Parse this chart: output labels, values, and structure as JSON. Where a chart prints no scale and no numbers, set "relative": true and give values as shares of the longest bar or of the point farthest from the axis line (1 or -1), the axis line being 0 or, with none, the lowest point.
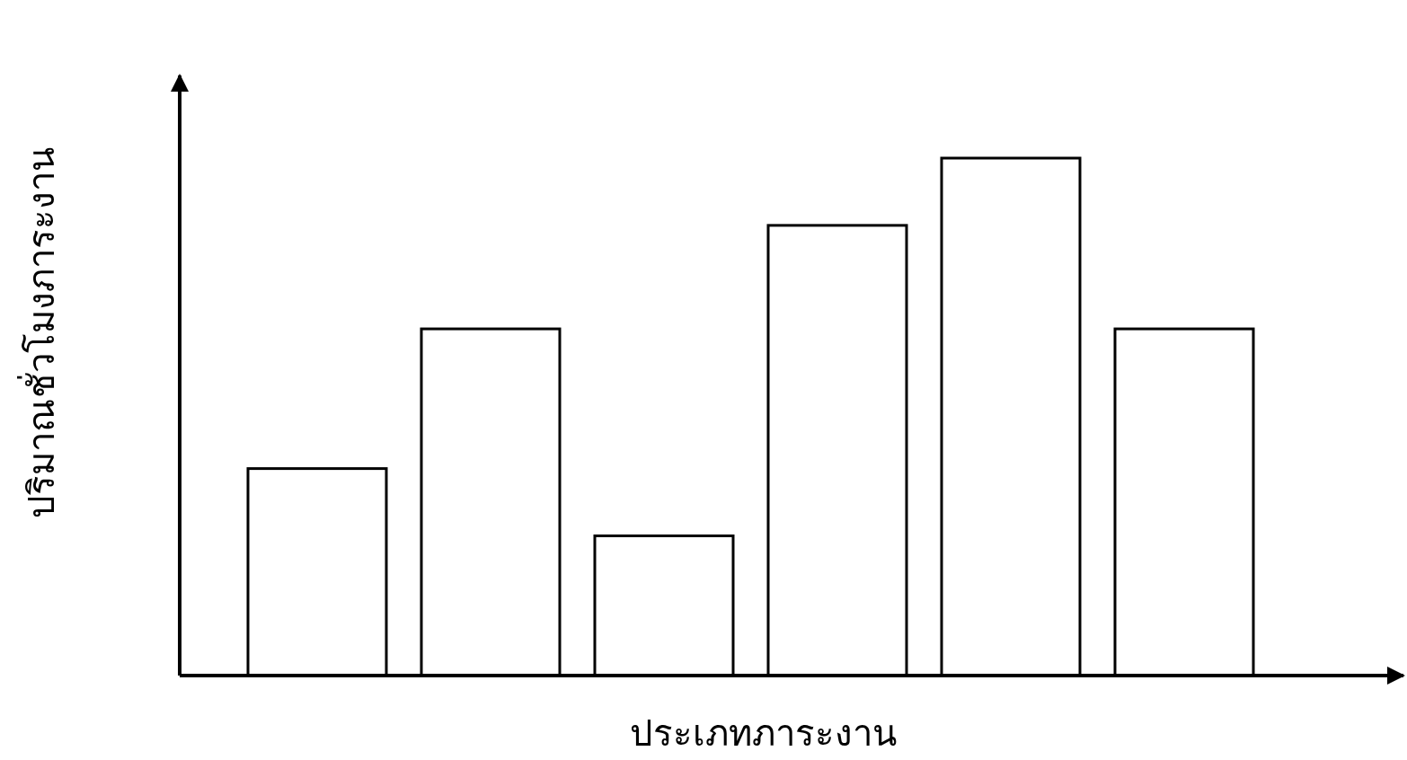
{
  "chart_data": {
    "type": "bar",
    "xlabel": "ประเภทภาระงาน",
    "ylabel": "ปริมาณชั่วโมงภาระงาน",
    "relative": true,
    "categories": [
      null,
      null,
      null,
      null,
      null,
      null
    ],
    "values": [
      0.4,
      0.67,
      0.27,
      0.87,
      1,
      0.67
    ],
    "color": "#ffffff"
  }
}
